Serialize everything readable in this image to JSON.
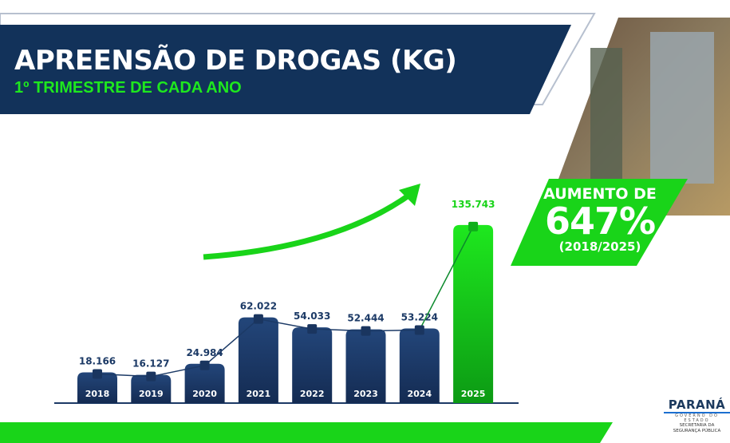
{
  "header": {
    "title": "APREENSÃO DE DROGAS (KG)",
    "subtitle": "1º TRIMESTRE DE CADA ANO"
  },
  "badge": {
    "line1": "AUMENTO DE",
    "percent": "647%",
    "period": "(2018/2025)"
  },
  "logo": {
    "name": "PARANÁ",
    "tagline": "GOVERNO DO ESTADO",
    "dept1": "SECRETARIA DA",
    "dept2": "SEGURANÇA PÚBLICA"
  },
  "colors": {
    "navy": "#12325a",
    "green": "#19d419",
    "bar_navy": "#1c3a66"
  },
  "chart_data": {
    "type": "bar",
    "categories": [
      "2018",
      "2019",
      "2020",
      "2021",
      "2022",
      "2023",
      "2024",
      "2025"
    ],
    "values": [
      18166,
      16127,
      24984,
      62022,
      54033,
      52444,
      53224,
      135743
    ],
    "data_labels": [
      "18.166",
      "16.127",
      "24.984",
      "62.022",
      "54.033",
      "52.444",
      "53.224",
      "135.743"
    ],
    "highlight": "2025",
    "overlay_line": true,
    "title": "APREENSÃO DE DROGAS (KG)"
  }
}
